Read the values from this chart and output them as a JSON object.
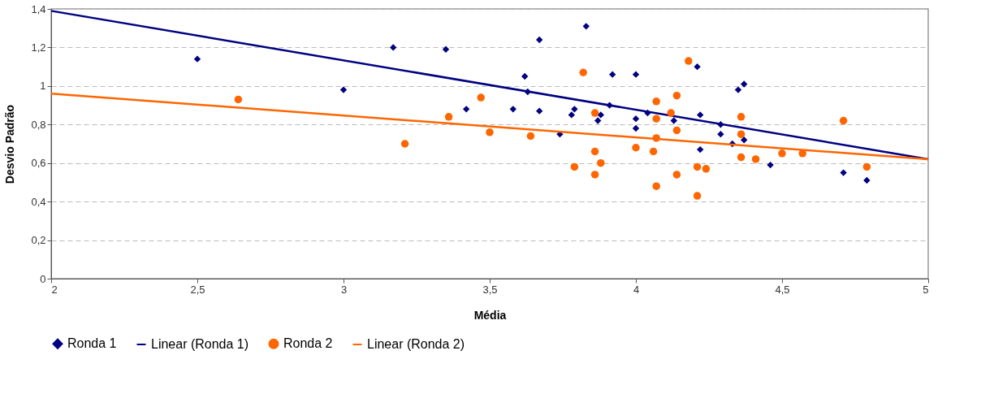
{
  "chart_data": {
    "type": "scatter",
    "xlabel": "Média",
    "ylabel": "Desvio Padrão",
    "xlim": [
      2,
      5
    ],
    "xticks": [
      2,
      {
        "value": 2.5,
        "label": "2,5"
      },
      3,
      {
        "value": 3.5,
        "label": "3,5"
      },
      4,
      {
        "value": 4.5,
        "label": "4,5"
      },
      5
    ],
    "ylim": [
      0,
      1.4
    ],
    "yticks": [
      0,
      {
        "value": 0.2,
        "label": "0,2"
      },
      {
        "value": 0.4,
        "label": "0,4"
      },
      {
        "value": 0.6,
        "label": "0,6"
      },
      {
        "value": 0.8,
        "label": "0,8"
      },
      1,
      {
        "value": 1.2,
        "label": "1,2"
      },
      {
        "value": 1.4,
        "label": "1,4"
      }
    ],
    "grid": "y",
    "legend": "bottom",
    "series": [
      {
        "name": "Ronda 1",
        "marker": "diamond",
        "color": "#000080",
        "x": [
          2.5,
          3.0,
          3.17,
          3.35,
          3.42,
          3.58,
          3.62,
          3.63,
          3.67,
          3.67,
          3.74,
          3.78,
          3.79,
          3.83,
          3.87,
          3.88,
          3.91,
          3.92,
          4.0,
          4.0,
          4.0,
          4.04,
          4.13,
          4.21,
          4.22,
          4.22,
          4.29,
          4.29,
          4.33,
          4.35,
          4.37,
          4.37,
          4.46,
          4.71,
          4.79
        ],
        "values": [
          1.14,
          0.98,
          1.2,
          1.19,
          0.88,
          0.88,
          1.05,
          0.97,
          1.24,
          0.87,
          0.75,
          0.85,
          0.88,
          1.31,
          0.82,
          0.85,
          0.9,
          1.06,
          1.06,
          0.83,
          0.78,
          0.86,
          0.82,
          1.1,
          0.85,
          0.67,
          0.8,
          0.75,
          0.7,
          0.98,
          1.01,
          0.72,
          0.59,
          0.55,
          0.51
        ]
      },
      {
        "name": "Linear (Ronda 1)",
        "type": "line",
        "line_style": "solid",
        "color": "#000080",
        "x": [
          2,
          5
        ],
        "values": [
          1.39,
          0.62
        ]
      },
      {
        "name": "Ronda 2",
        "marker": "circle",
        "color": "#ff6600",
        "x": [
          2.64,
          3.21,
          3.36,
          3.47,
          3.5,
          3.64,
          3.79,
          3.82,
          3.86,
          3.86,
          3.86,
          3.88,
          4.0,
          4.06,
          4.07,
          4.07,
          4.07,
          4.07,
          4.12,
          4.14,
          4.14,
          4.14,
          4.18,
          4.21,
          4.21,
          4.24,
          4.36,
          4.36,
          4.36,
          4.41,
          4.5,
          4.57,
          4.71,
          4.79
        ],
        "values": [
          0.93,
          0.7,
          0.84,
          0.94,
          0.76,
          0.74,
          0.58,
          1.07,
          0.86,
          0.66,
          0.54,
          0.6,
          0.68,
          0.66,
          0.92,
          0.83,
          0.73,
          0.48,
          0.86,
          0.95,
          0.77,
          0.54,
          1.13,
          0.58,
          0.43,
          0.57,
          0.84,
          0.75,
          0.63,
          0.62,
          0.65,
          0.65,
          0.82,
          0.58
        ]
      },
      {
        "name": "Linear (Ronda 2)",
        "type": "line",
        "line_style": "solid",
        "color": "#ff6600",
        "x": [
          2,
          5
        ],
        "values": [
          0.96,
          0.62
        ]
      }
    ]
  }
}
